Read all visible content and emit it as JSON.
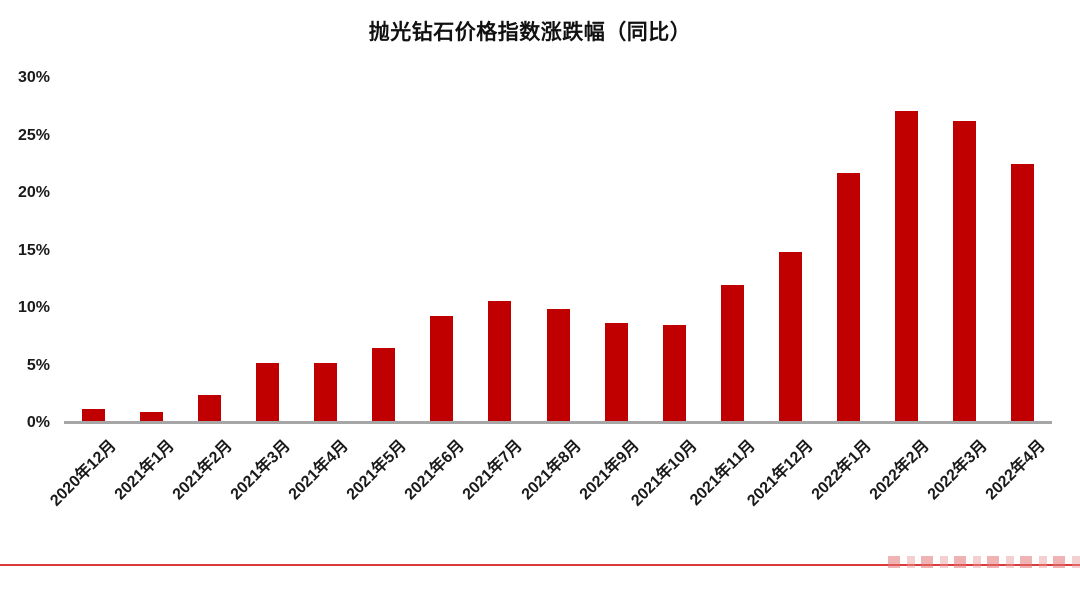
{
  "chart_data": {
    "type": "bar",
    "title": "抛光钻石价格指数涨跌幅（同比）",
    "categories": [
      "2020年12月",
      "2021年1月",
      "2021年2月",
      "2021年3月",
      "2021年4月",
      "2021年5月",
      "2021年6月",
      "2021年7月",
      "2021年8月",
      "2021年9月",
      "2021年10月",
      "2021年11月",
      "2021年12月",
      "2022年1月",
      "2022年2月",
      "2022年3月",
      "2022年4月"
    ],
    "values": [
      1.2,
      1.0,
      2.4,
      5.2,
      5.2,
      6.5,
      9.3,
      10.6,
      9.9,
      8.7,
      8.5,
      12.0,
      14.9,
      21.7,
      27.1,
      26.3,
      22.5
    ],
    "unit": "%",
    "xlabel": "",
    "ylabel": "",
    "ylim": [
      0,
      30
    ],
    "ytick_values": [
      0,
      5,
      10,
      15,
      20,
      25,
      30
    ],
    "yticks": [
      "0%",
      "5%",
      "10%",
      "15%",
      "20%",
      "25%",
      "30%"
    ],
    "grid": false,
    "legend": false,
    "x_labels_rotation_deg": -45
  },
  "colors": {
    "bar": "#C00000",
    "axis_line": "#A6A6A6",
    "text": "#1A1A1A",
    "footer_line": "#DC3B3B",
    "background": "#FFFFFF"
  }
}
